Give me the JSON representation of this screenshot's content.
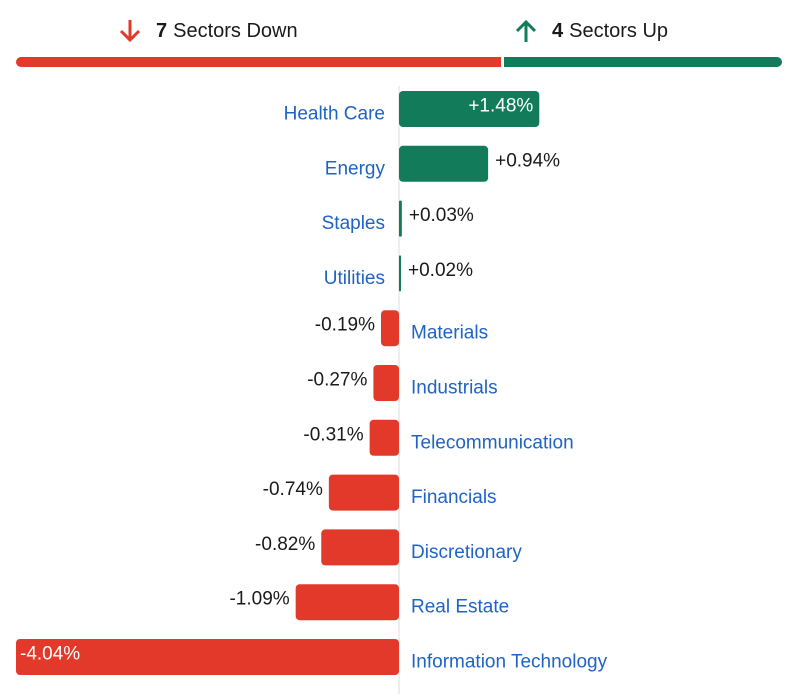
{
  "summary": {
    "down_count": "7",
    "down_text": "Sectors Down",
    "up_count": "4",
    "up_text": "Sectors Up",
    "down_color": "#e3392b",
    "up_color": "#127c5a",
    "down_icon": "arrow-down-icon",
    "up_icon": "arrow-up-icon"
  },
  "chart_data": {
    "type": "bar",
    "orientation": "horizontal",
    "categories": [
      "Health Care",
      "Energy",
      "Staples",
      "Utilities",
      "Materials",
      "Industrials",
      "Telecommunication",
      "Financials",
      "Discretionary",
      "Real Estate",
      "Information Technology"
    ],
    "values": [
      1.48,
      0.94,
      0.03,
      0.02,
      -0.19,
      -0.27,
      -0.31,
      -0.74,
      -0.82,
      -1.09,
      -4.04
    ],
    "value_labels": [
      "+1.48%",
      "+0.94%",
      "+0.03%",
      "+0.02%",
      "-0.19%",
      "-0.27%",
      "-0.31%",
      "-0.74%",
      "-0.82%",
      "-1.09%",
      "-4.04%"
    ],
    "positive_color": "#127c5a",
    "negative_color": "#e3392b",
    "title": "",
    "xlabel": "",
    "ylabel": ""
  }
}
